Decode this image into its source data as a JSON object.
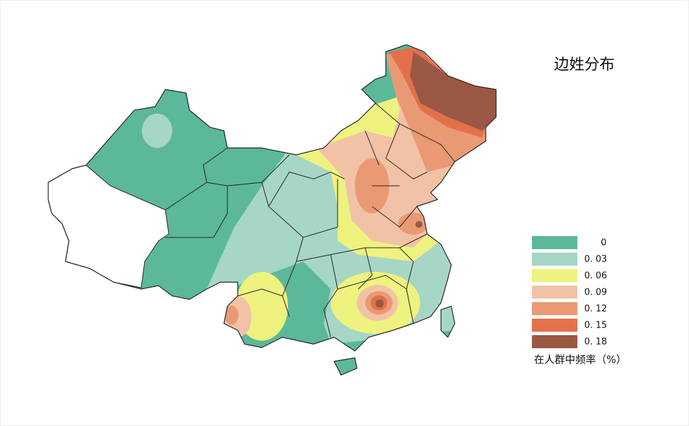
{
  "title": "边姓分布",
  "legend": {
    "items": [
      {
        "label": "0",
        "color": "#5cb89a"
      },
      {
        "label": "0. 03",
        "color": "#a6d6c6"
      },
      {
        "label": "0. 06",
        "color": "#eef27e"
      },
      {
        "label": "0. 09",
        "color": "#f2c2a6"
      },
      {
        "label": "0. 12",
        "color": "#e99a74"
      },
      {
        "label": "0. 15",
        "color": "#e2714a"
      },
      {
        "label": "0. 18",
        "color": "#9a5744"
      }
    ],
    "caption": "在人群中频率（%）"
  }
}
